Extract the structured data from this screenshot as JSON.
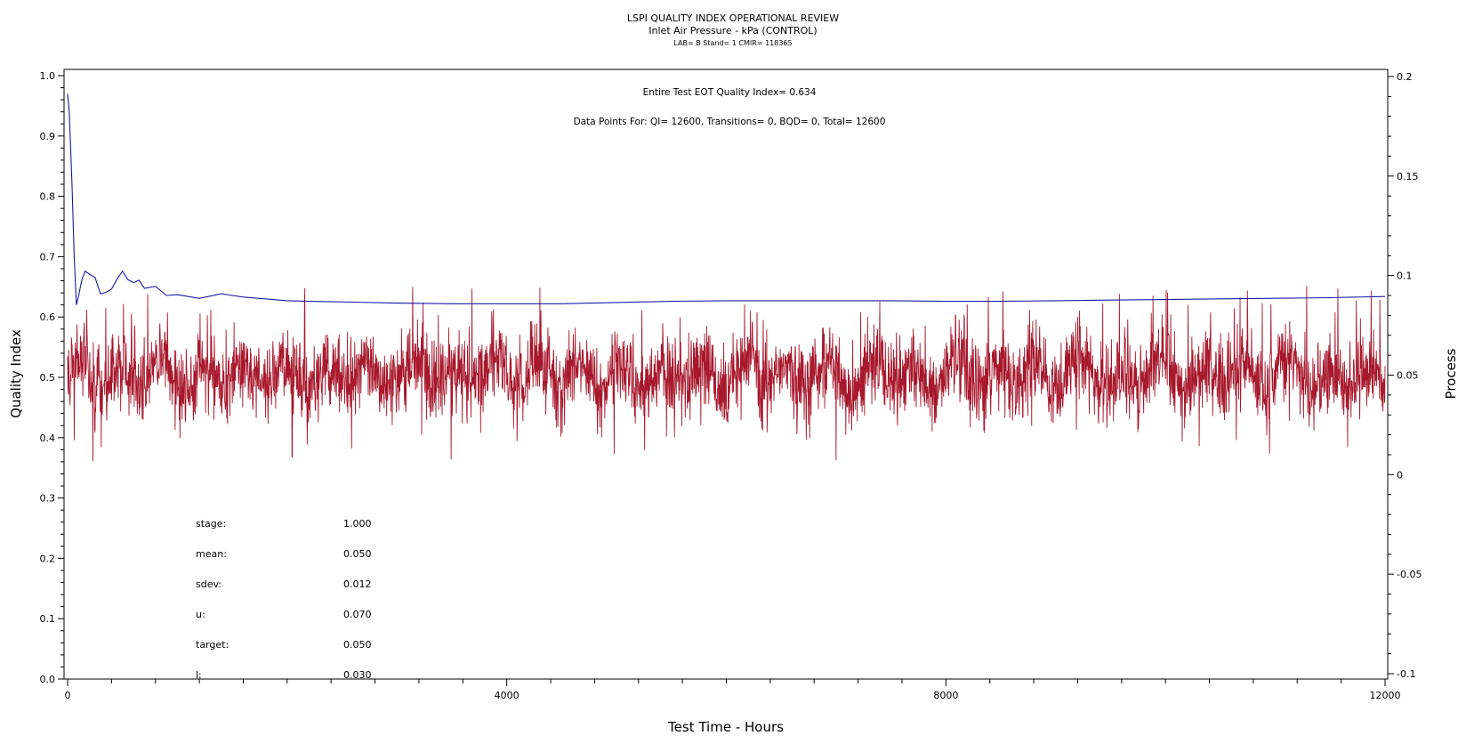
{
  "chart_data": {
    "type": "line",
    "title": "LSPI QUALITY INDEX OPERATIONAL REVIEW",
    "subtitle": "Inlet Air Pressure - kPa (CONTROL)",
    "caption": "LAB= B Stand= 1 CMIR= 118365",
    "annotation_qi": "Entire Test EOT Quality Index=   0.634",
    "annotation_points": "Data Points For: QI= 12600, Transitions=     0, BQD=     0, Total= 12600",
    "xlabel": "Test Time - Hours",
    "ylabel_left": "Quality Index",
    "ylabel_right": "Process",
    "xlim": [
      0,
      12000
    ],
    "ylim_left": [
      0,
      1
    ],
    "ylim_right": [
      -0.1,
      0.2
    ],
    "x_ticks": [
      "0",
      "4000",
      "8000",
      "12000"
    ],
    "y_left_ticks": [
      "0.0",
      "0.1",
      "0.2",
      "0.3",
      "0.4",
      "0.5",
      "0.6",
      "0.7",
      "0.8",
      "0.9",
      "1.0"
    ],
    "y_right_ticks": [
      "-0.1",
      "-0.05",
      "0",
      "0.05",
      "0.1",
      "0.15",
      "0.2"
    ],
    "series": [
      {
        "axis": "left",
        "color": "#1a1aa6",
        "x": [
          0,
          15,
          40,
          60,
          80,
          100,
          130,
          160,
          200,
          250,
          300,
          350,
          400,
          450,
          500,
          550,
          600,
          650,
          700,
          800,
          900,
          1000,
          1200,
          1400,
          1600,
          1800,
          2000,
          2200,
          2500,
          3000,
          3500,
          4000,
          4500,
          5000,
          5500,
          6000,
          6500,
          7000,
          7500,
          8000,
          8500,
          9000,
          9500,
          10000,
          10500,
          11000,
          11500,
          12000
        ],
        "y": [
          0.97,
          0.94,
          0.82,
          0.7,
          0.62,
          0.64,
          0.66,
          0.67,
          0.665,
          0.67,
          0.64,
          0.635,
          0.65,
          0.665,
          0.67,
          0.665,
          0.66,
          0.655,
          0.65,
          0.645,
          0.64,
          0.638,
          0.636,
          0.634,
          0.633,
          0.63,
          0.627,
          0.626,
          0.625,
          0.623,
          0.622,
          0.622,
          0.622,
          0.624,
          0.626,
          0.627,
          0.627,
          0.627,
          0.627,
          0.626,
          0.626,
          0.627,
          0.628,
          0.629,
          0.63,
          0.631,
          0.632,
          0.634
        ]
      },
      {
        "axis": "right",
        "color": "#a8182c",
        "x_range": [
          0,
          12000
        ],
        "points": 12600,
        "mean": 0.05,
        "sdev": 0.012,
        "min": 0.0028,
        "max": 0.0958
      }
    ]
  },
  "stats": [
    {
      "label": "stage:",
      "value": "1.000"
    },
    {
      "label": "mean:",
      "value": "0.050"
    },
    {
      "label": "sdev:",
      "value": "0.012"
    },
    {
      "label": "u:",
      "value": "0.070"
    },
    {
      "label": "target:",
      "value": "0.050"
    },
    {
      "label": "l:",
      "value": "0.030"
    }
  ]
}
